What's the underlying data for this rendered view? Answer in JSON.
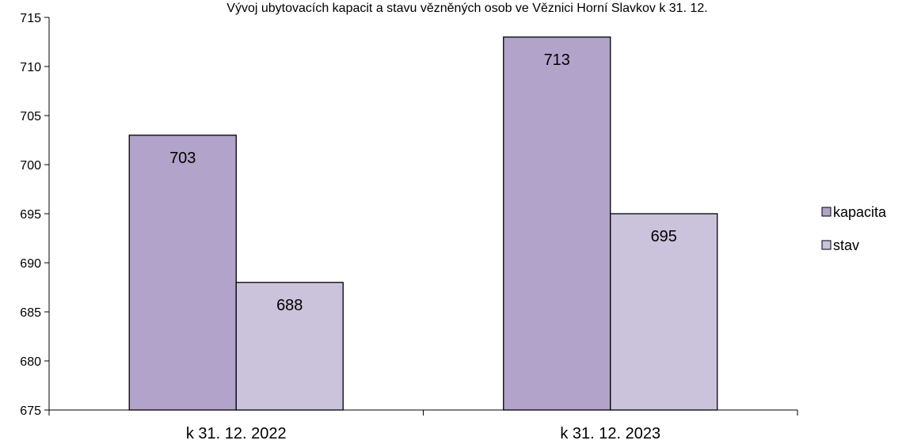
{
  "chart_data": {
    "type": "bar",
    "title": "Vývoj ubytovacích kapacit a stavu vězněných osob ve Věznici Horní Slavkov k 31. 12.",
    "xlabel": "",
    "ylabel": "",
    "categories": [
      "k 31. 12. 2022",
      "k 31. 12. 2023"
    ],
    "series": [
      {
        "name": "kapacita",
        "values": [
          703,
          713
        ],
        "color": "#b1a3c9"
      },
      {
        "name": "stav",
        "values": [
          688,
          695
        ],
        "color": "#cbc2dc"
      }
    ],
    "ylim": [
      675,
      715
    ],
    "yticks": [
      675,
      680,
      685,
      690,
      695,
      700,
      705,
      710,
      715
    ],
    "grid": false,
    "legend": "right"
  }
}
